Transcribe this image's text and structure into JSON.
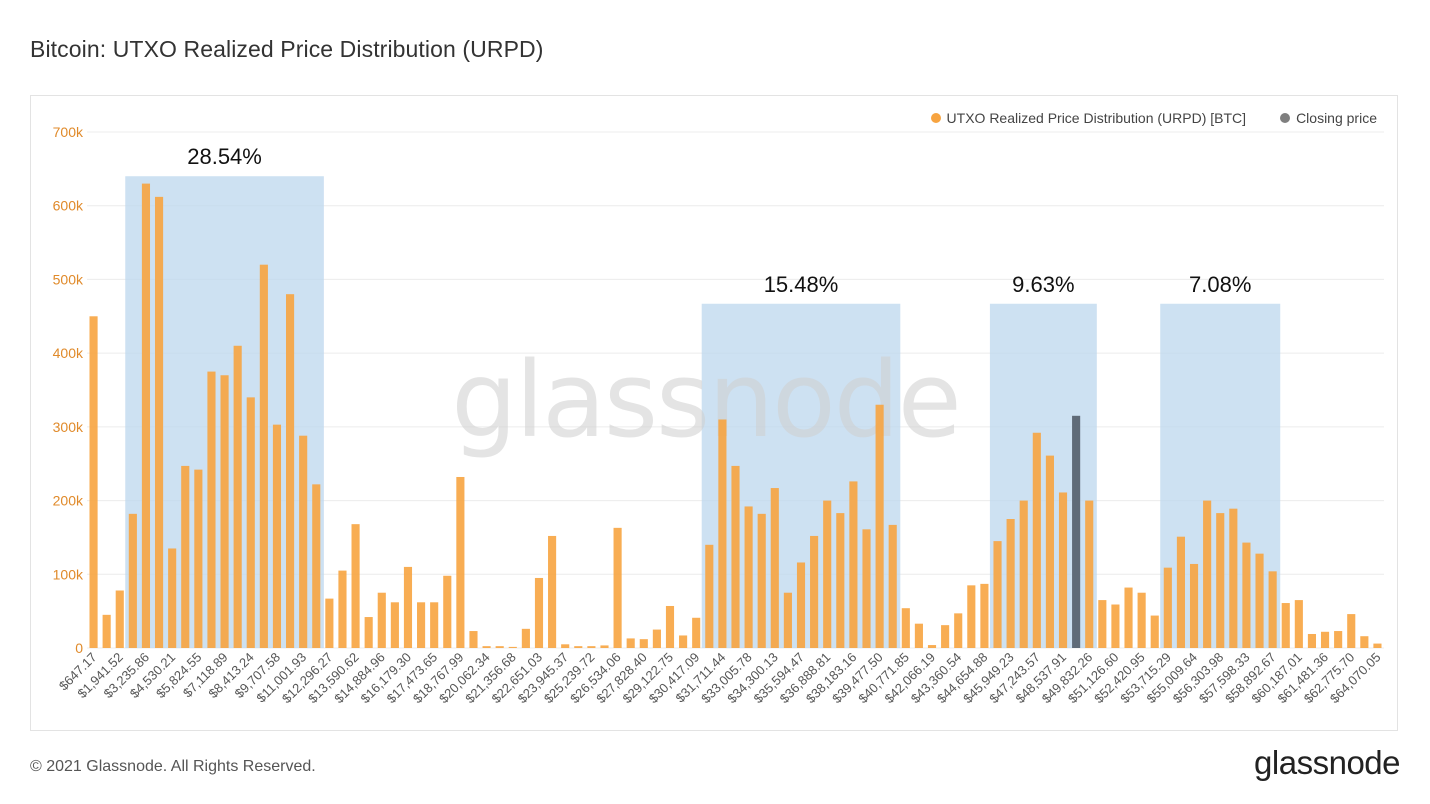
{
  "header": {
    "title": "Bitcoin: UTXO Realized Price Distribution (URPD)"
  },
  "footer": {
    "copyright": "© 2021 Glassnode. All Rights Reserved.",
    "brand": "glassnode"
  },
  "watermark": "glassnode",
  "colors": {
    "bar": "#f7a440",
    "closing": "#5f6b78",
    "highlight": "#bcd7ee",
    "axis": "#e08a2a",
    "grid": "#ececec"
  },
  "chart_data": {
    "type": "bar",
    "title": "Bitcoin: UTXO Realized Price Distribution (URPD)",
    "xlabel": "",
    "ylabel": "",
    "ylim": [
      0,
      700000
    ],
    "yticks": [
      0,
      100000,
      200000,
      300000,
      400000,
      500000,
      600000,
      700000
    ],
    "ytick_labels": [
      "0",
      "100k",
      "200k",
      "300k",
      "400k",
      "500k",
      "600k",
      "700k"
    ],
    "legend": [
      {
        "name": "UTXO Realized Price Distribution (URPD) [BTC]",
        "color": "#f7a440"
      },
      {
        "name": "Closing price",
        "color": "#7f7f7f"
      }
    ],
    "tick_labels": [
      "$647.17",
      "$1,941.52",
      "$3,235.86",
      "$4,530.21",
      "$5,824.55",
      "$7,118.89",
      "$8,413.24",
      "$9,707.58",
      "$11,001.93",
      "$12,296.27",
      "$13,590.62",
      "$14,884.96",
      "$16,179.30",
      "$17,473.65",
      "$18,767.99",
      "$20,062.34",
      "$21,356.68",
      "$22,651.03",
      "$23,945.37",
      "$25,239.72",
      "$26,534.06",
      "$27,828.40",
      "$29,122.75",
      "$30,417.09",
      "$31,711.44",
      "$33,005.78",
      "$34,300.13",
      "$35,594.47",
      "$36,888.81",
      "$38,183.16",
      "$39,477.50",
      "$40,771.85",
      "$42,066.19",
      "$43,360.54",
      "$44,654.88",
      "$45,949.23",
      "$47,243.57",
      "$48,537.91",
      "$49,832.26",
      "$51,126.60",
      "$52,420.95",
      "$53,715.29",
      "$55,009.64",
      "$56,303.98",
      "$57,598.33",
      "$58,892.67",
      "$60,187.01",
      "$61,481.36",
      "$62,775.70",
      "$64,070.05"
    ],
    "values": [
      450000,
      45000,
      78000,
      182000,
      630000,
      612000,
      135000,
      247000,
      242000,
      375000,
      370000,
      410000,
      340000,
      520000,
      303000,
      480000,
      288000,
      222000,
      67000,
      105000,
      168000,
      42000,
      75000,
      62000,
      110000,
      62000,
      62000,
      98000,
      232000,
      23000,
      2500,
      2500,
      1500,
      26000,
      95000,
      152000,
      5000,
      2500,
      2500,
      3500,
      163000,
      13000,
      12000,
      25000,
      57000,
      17000,
      41000,
      140000,
      310000,
      247000,
      192000,
      182000,
      217000,
      75000,
      116000,
      152000,
      200000,
      183000,
      226000,
      161000,
      330000,
      167000,
      54000,
      33000,
      4000,
      31000,
      47000,
      85000,
      87000,
      145000,
      175000,
      200000,
      292000,
      261000,
      211000,
      315000,
      200000,
      65000,
      59000,
      82000,
      75000,
      44000,
      109000,
      151000,
      114000,
      200000,
      183000,
      189000,
      143000,
      128000,
      104000,
      61000,
      65000,
      19000,
      22000,
      23000,
      46000,
      16000,
      6000
    ],
    "closing_price_index": 75,
    "annotations": [
      {
        "label": "28.54%",
        "start_index": 3,
        "end_index": 17,
        "top_value": 640000
      },
      {
        "label": "15.48%",
        "start_index": 47,
        "end_index": 61,
        "top_value": 467000
      },
      {
        "label": "9.63%",
        "start_index": 69,
        "end_index": 76,
        "top_value": 467000
      },
      {
        "label": "7.08%",
        "start_index": 82,
        "end_index": 90,
        "top_value": 467000
      }
    ]
  }
}
